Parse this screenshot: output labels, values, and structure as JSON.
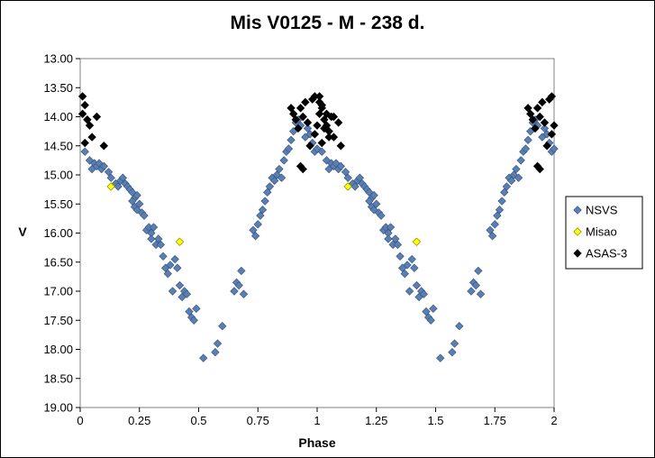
{
  "chart_data": {
    "type": "scatter",
    "title": "Mis V0125 - M - 238 d.",
    "xlabel": "Phase",
    "ylabel": "V",
    "xlim": [
      0,
      2
    ],
    "ylim": [
      13.0,
      19.0
    ],
    "y_inverted": true,
    "x_ticks": [
      "0",
      "0.25",
      "0.5",
      "0.75",
      "1",
      "1.25",
      "1.5",
      "1.75",
      "2"
    ],
    "y_ticks": [
      "13.00",
      "13.50",
      "14.00",
      "14.50",
      "15.00",
      "15.50",
      "16.00",
      "16.50",
      "17.00",
      "17.50",
      "18.00",
      "18.50",
      "19.00"
    ],
    "grid": false,
    "legend_position": "right",
    "series": [
      {
        "name": "NSVS",
        "color": "#5b7fb0",
        "marker": "diamond",
        "points": [
          [
            0.02,
            14.6
          ],
          [
            0.04,
            14.75
          ],
          [
            0.05,
            14.9
          ],
          [
            0.06,
            14.8
          ],
          [
            0.07,
            14.85
          ],
          [
            0.08,
            14.8
          ],
          [
            0.09,
            14.9
          ],
          [
            0.1,
            14.85
          ],
          [
            0.12,
            14.95
          ],
          [
            0.13,
            15.05
          ],
          [
            0.15,
            15.15
          ],
          [
            0.16,
            15.2
          ],
          [
            0.17,
            15.1
          ],
          [
            0.18,
            15.05
          ],
          [
            0.19,
            15.15
          ],
          [
            0.2,
            15.2
          ],
          [
            0.21,
            15.25
          ],
          [
            0.22,
            15.3
          ],
          [
            0.23,
            15.4
          ],
          [
            0.24,
            15.35
          ],
          [
            0.22,
            15.45
          ],
          [
            0.23,
            15.55
          ],
          [
            0.24,
            15.6
          ],
          [
            0.25,
            15.5
          ],
          [
            0.26,
            15.65
          ],
          [
            0.27,
            15.7
          ],
          [
            0.28,
            15.95
          ],
          [
            0.29,
            15.9
          ],
          [
            0.3,
            16.0
          ],
          [
            0.31,
            15.9
          ],
          [
            0.3,
            16.1
          ],
          [
            0.32,
            16.2
          ],
          [
            0.33,
            16.1
          ],
          [
            0.34,
            16.2
          ],
          [
            0.35,
            16.4
          ],
          [
            0.36,
            16.6
          ],
          [
            0.37,
            16.7
          ],
          [
            0.38,
            16.55
          ],
          [
            0.39,
            17.0
          ],
          [
            0.4,
            16.45
          ],
          [
            0.41,
            16.6
          ],
          [
            0.42,
            16.9
          ],
          [
            0.43,
            17.1
          ],
          [
            0.44,
            17.0
          ],
          [
            0.45,
            17.05
          ],
          [
            0.46,
            17.35
          ],
          [
            0.47,
            17.45
          ],
          [
            0.48,
            17.5
          ],
          [
            0.49,
            17.3
          ],
          [
            0.52,
            18.15
          ],
          [
            0.57,
            18.05
          ],
          [
            0.58,
            17.9
          ],
          [
            0.6,
            17.6
          ],
          [
            0.65,
            17.0
          ],
          [
            0.66,
            16.85
          ],
          [
            0.67,
            16.9
          ],
          [
            0.68,
            16.65
          ],
          [
            0.69,
            17.05
          ],
          [
            0.73,
            15.95
          ],
          [
            0.74,
            16.05
          ],
          [
            0.75,
            15.85
          ],
          [
            0.76,
            15.7
          ],
          [
            0.77,
            15.6
          ],
          [
            0.78,
            15.45
          ],
          [
            0.79,
            15.3
          ],
          [
            0.8,
            15.2
          ],
          [
            0.81,
            15.05
          ],
          [
            0.82,
            15.1
          ],
          [
            0.83,
            15.0
          ],
          [
            0.84,
            14.9
          ],
          [
            0.85,
            15.05
          ],
          [
            0.86,
            14.75
          ],
          [
            0.87,
            14.6
          ],
          [
            0.88,
            14.55
          ],
          [
            0.89,
            14.4
          ],
          [
            0.9,
            14.25
          ],
          [
            0.91,
            14.1
          ],
          [
            0.92,
            14.05
          ],
          [
            0.93,
            14.15
          ],
          [
            0.95,
            14.35
          ],
          [
            0.96,
            14.2
          ],
          [
            0.97,
            14.3
          ],
          [
            0.98,
            14.45
          ],
          [
            0.99,
            14.6
          ],
          [
            1.0,
            14.55
          ]
        ]
      },
      {
        "name": "Misao",
        "color": "#ffff00",
        "marker": "diamond",
        "points": [
          [
            0.13,
            15.2
          ],
          [
            0.42,
            16.15
          ],
          [
            1.13,
            15.2
          ],
          [
            1.42,
            16.15
          ]
        ]
      },
      {
        "name": "ASAS-3",
        "color": "#000000",
        "marker": "diamond",
        "points": [
          [
            0.01,
            13.65
          ],
          [
            0.01,
            13.95
          ],
          [
            0.02,
            13.8
          ],
          [
            0.02,
            14.45
          ],
          [
            0.03,
            14.05
          ],
          [
            0.04,
            14.15
          ],
          [
            0.05,
            14.35
          ],
          [
            0.07,
            14.0
          ],
          [
            0.1,
            14.5
          ],
          [
            0.89,
            13.85
          ],
          [
            0.9,
            13.95
          ],
          [
            0.91,
            14.05
          ],
          [
            0.92,
            14.2
          ],
          [
            0.93,
            13.85
          ],
          [
            0.94,
            14.0
          ],
          [
            0.95,
            13.75
          ],
          [
            0.96,
            14.1
          ],
          [
            0.97,
            14.5
          ],
          [
            0.98,
            13.7
          ],
          [
            0.99,
            13.65
          ],
          [
            1.0,
            14.15
          ],
          [
            1.01,
            13.75
          ],
          [
            1.02,
            13.85
          ],
          [
            1.03,
            14.2
          ],
          [
            1.04,
            13.95
          ],
          [
            1.05,
            14.25
          ],
          [
            1.06,
            14.0
          ],
          [
            1.07,
            14.35
          ],
          [
            1.09,
            14.1
          ],
          [
            1.1,
            14.5
          ],
          [
            0.93,
            14.85
          ],
          [
            0.94,
            14.9
          ],
          [
            0.99,
            14.3
          ],
          [
            1.02,
            14.45
          ]
        ]
      }
    ]
  }
}
